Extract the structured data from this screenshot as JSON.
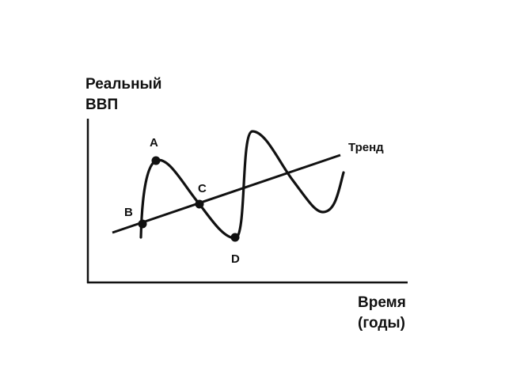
{
  "diagram": {
    "y_axis_label_line1": "Реальный",
    "y_axis_label_line2": "ВВП",
    "x_axis_label_line1": "Время",
    "x_axis_label_line2": "(годы)",
    "trend_label": "Тренд",
    "points": [
      {
        "id": "A",
        "label": "A"
      },
      {
        "id": "B",
        "label": "B"
      },
      {
        "id": "C",
        "label": "C"
      },
      {
        "id": "D",
        "label": "D"
      }
    ],
    "colors": {
      "ink": "#111111",
      "background": "#ffffff"
    }
  }
}
